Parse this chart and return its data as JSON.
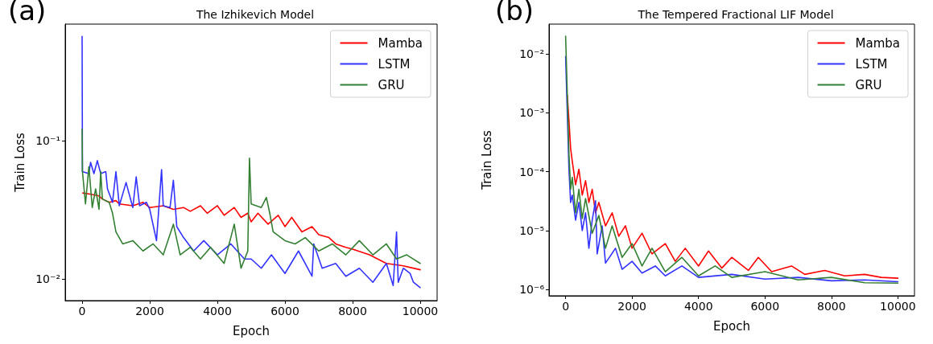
{
  "chart_data": [
    {
      "type": "line",
      "title": "The Izhikevich Model",
      "xlabel": "Epoch",
      "ylabel": "Train Loss",
      "annotations": [
        "(a)"
      ],
      "log": "y",
      "grid": false,
      "legend": "top right",
      "marker": "none",
      "line_style": "solid",
      "xlim": [
        -500,
        10500
      ],
      "xticks": [
        0,
        2000,
        4000,
        6000,
        8000,
        10000
      ],
      "ylim": [
        0.007,
        0.7
      ],
      "yticks": [
        {
          "value": 0.1,
          "label": "10⁻¹"
        },
        {
          "value": 0.01,
          "label": "10⁻²"
        }
      ],
      "series": [
        {
          "name": "Mamba",
          "color": "#ff0000",
          "x": [
            20,
            300,
            500,
            600,
            800,
            1000,
            1100,
            1500,
            1800,
            2000,
            2400,
            2700,
            3000,
            3200,
            3500,
            3700,
            4000,
            4200,
            4500,
            4700,
            4900,
            5000,
            5200,
            5500,
            5800,
            6000,
            6200,
            6500,
            6800,
            7000,
            7300,
            7500,
            7800,
            8000,
            8500,
            9000,
            9500,
            10000
          ],
          "values": [
            0.042,
            0.041,
            0.04,
            0.038,
            0.036,
            0.037,
            0.035,
            0.034,
            0.036,
            0.033,
            0.034,
            0.032,
            0.033,
            0.031,
            0.034,
            0.03,
            0.034,
            0.029,
            0.033,
            0.028,
            0.03,
            0.026,
            0.03,
            0.025,
            0.029,
            0.024,
            0.028,
            0.022,
            0.024,
            0.021,
            0.02,
            0.018,
            0.017,
            0.0165,
            0.015,
            0.013,
            0.0125,
            0.0117
          ]
        },
        {
          "name": "LSTM",
          "color": "#3333ff",
          "x": [
            0,
            10,
            200,
            250,
            350,
            450,
            550,
            700,
            750,
            900,
            1000,
            1100,
            1300,
            1500,
            1600,
            1700,
            1900,
            2000,
            2200,
            2250,
            2350,
            2400,
            2600,
            2700,
            2800,
            3000,
            3300,
            3600,
            4000,
            4400,
            4800,
            5000,
            5300,
            5600,
            6000,
            6400,
            6800,
            6850,
            7100,
            7500,
            7800,
            8200,
            8600,
            9000,
            9200,
            9300,
            9350,
            9500,
            9700,
            9800,
            10000
          ],
          "values": [
            0.57,
            0.06,
            0.058,
            0.07,
            0.058,
            0.072,
            0.058,
            0.06,
            0.045,
            0.036,
            0.06,
            0.034,
            0.05,
            0.033,
            0.055,
            0.034,
            0.036,
            0.032,
            0.019,
            0.028,
            0.062,
            0.034,
            0.033,
            0.052,
            0.024,
            0.02,
            0.016,
            0.019,
            0.015,
            0.018,
            0.014,
            0.014,
            0.012,
            0.015,
            0.011,
            0.016,
            0.0105,
            0.018,
            0.012,
            0.013,
            0.0105,
            0.012,
            0.0095,
            0.013,
            0.009,
            0.022,
            0.0095,
            0.012,
            0.011,
            0.0095,
            0.0087
          ]
        },
        {
          "name": "GRU",
          "color": "#338033",
          "x": [
            0,
            10,
            100,
            200,
            300,
            400,
            500,
            550,
            600,
            800,
            900,
            1000,
            1200,
            1500,
            1800,
            2100,
            2400,
            2700,
            2900,
            3200,
            3500,
            3800,
            4200,
            4500,
            4700,
            4900,
            4950,
            5000,
            5300,
            5450,
            5550,
            5650,
            6000,
            6300,
            6600,
            7000,
            7400,
            7800,
            8200,
            8600,
            9000,
            9300,
            9600,
            10000
          ],
          "values": [
            0.122,
            0.06,
            0.035,
            0.065,
            0.033,
            0.045,
            0.032,
            0.06,
            0.038,
            0.036,
            0.03,
            0.022,
            0.018,
            0.019,
            0.016,
            0.018,
            0.015,
            0.025,
            0.015,
            0.017,
            0.014,
            0.017,
            0.013,
            0.025,
            0.012,
            0.016,
            0.075,
            0.035,
            0.033,
            0.039,
            0.03,
            0.022,
            0.019,
            0.018,
            0.02,
            0.016,
            0.018,
            0.015,
            0.019,
            0.015,
            0.018,
            0.014,
            0.015,
            0.013
          ]
        }
      ]
    },
    {
      "type": "line",
      "title": "The Tempered Fractional LIF Model",
      "xlabel": "Epoch",
      "ylabel": "Train Loss",
      "annotations": [
        "(b)"
      ],
      "log": "y",
      "grid": false,
      "legend": "top right",
      "marker": "none",
      "line_style": "solid",
      "xlim": [
        -500,
        10500
      ],
      "xticks": [
        0,
        2000,
        4000,
        6000,
        8000,
        10000
      ],
      "ylim": [
        7.8e-07,
        0.032
      ],
      "yticks": [
        {
          "value": 0.01,
          "label": "10⁻²"
        },
        {
          "value": 0.001,
          "label": "10⁻³"
        },
        {
          "value": 0.0001,
          "label": "10⁻⁴"
        },
        {
          "value": 1e-05,
          "label": "10⁻⁵"
        },
        {
          "value": 1e-06,
          "label": "10⁻⁶"
        }
      ],
      "series": [
        {
          "name": "Mamba",
          "color": "#ff0000",
          "x": [
            50,
            100,
            150,
            200,
            300,
            400,
            500,
            600,
            700,
            800,
            900,
            1000,
            1200,
            1400,
            1600,
            1800,
            2000,
            2300,
            2600,
            3000,
            3300,
            3600,
            4000,
            4300,
            4700,
            5000,
            5500,
            5800,
            6200,
            6800,
            7200,
            7800,
            8400,
            9000,
            9500,
            10000
          ],
          "values": [
            0.002,
            0.00074,
            0.00025,
            0.00015,
            6e-05,
            0.00011,
            4e-05,
            7e-05,
            3e-05,
            5e-05,
            2e-05,
            3e-05,
            1.2e-05,
            2e-05,
            8e-06,
            1.2e-05,
            5e-06,
            9e-06,
            4e-06,
            6e-06,
            3e-06,
            5e-06,
            2.5e-06,
            4.5e-06,
            2.3e-06,
            3.5e-06,
            2.1e-06,
            3.5e-06,
            2e-06,
            2.5e-06,
            1.8e-06,
            2.1e-06,
            1.7e-06,
            1.8e-06,
            1.6e-06,
            1.55e-06
          ]
        },
        {
          "name": "LSTM",
          "color": "#3333ff",
          "x": [
            0,
            50,
            100,
            150,
            200,
            300,
            400,
            500,
            600,
            700,
            800,
            900,
            950,
            1100,
            1200,
            1500,
            1700,
            2000,
            2300,
            2700,
            3000,
            3500,
            4000,
            5000,
            6000,
            7000,
            8000,
            9000,
            10000
          ],
          "values": [
            0.009,
            0.001,
            0.00011,
            3e-05,
            4e-05,
            1.5e-05,
            3e-05,
            1e-05,
            2e-05,
            5e-06,
            1.5e-05,
            3.2e-05,
            4e-06,
            1.2e-05,
            2.8e-06,
            5e-06,
            2.2e-06,
            3e-06,
            1.9e-06,
            2.5e-06,
            1.7e-06,
            2.5e-06,
            1.6e-06,
            1.8e-06,
            1.5e-06,
            1.6e-06,
            1.4e-06,
            1.45e-06,
            1.35e-06
          ]
        },
        {
          "name": "GRU",
          "color": "#338033",
          "x": [
            0,
            50,
            100,
            150,
            200,
            300,
            400,
            500,
            600,
            800,
            1000,
            1200,
            1400,
            1700,
            2000,
            2300,
            2600,
            3000,
            3500,
            4000,
            4500,
            5000,
            6000,
            7000,
            8000,
            9000,
            10000
          ],
          "values": [
            0.02,
            0.002,
            0.0002,
            5e-05,
            8e-05,
            2e-05,
            5e-05,
            1.6e-05,
            3.5e-05,
            9e-06,
            1.8e-05,
            5e-06,
            1.2e-05,
            3.5e-06,
            6e-06,
            2.5e-06,
            5e-06,
            2e-06,
            3.5e-06,
            1.7e-06,
            2.5e-06,
            1.6e-06,
            2e-06,
            1.45e-06,
            1.6e-06,
            1.3e-06,
            1.28e-06
          ]
        }
      ]
    }
  ]
}
